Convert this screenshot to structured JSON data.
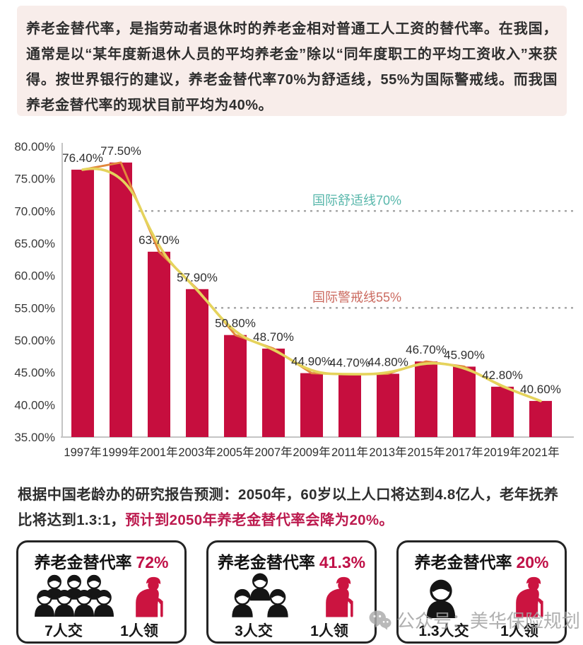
{
  "intro": {
    "text": "养老金替代率，是指劳动者退休时的养老金相对普通工人工资的替代率。在我国，通常是以“某年度新退休人员的平均养老金”除以“同年度职工的平均工资收入”来获得。按世界银行的建议，养老金替代率70%为舒适线，55%为国际警戒线。而我国养老金替代率的现状目前平均为40%。"
  },
  "chart_data": {
    "type": "bar",
    "title": "",
    "categories": [
      "1997年",
      "1999年",
      "2001年",
      "2003年",
      "2005年",
      "2007年",
      "2009年",
      "2011年",
      "2013年",
      "2015年",
      "2017年",
      "2019年",
      "2021年"
    ],
    "values": [
      76.4,
      77.5,
      63.7,
      57.9,
      50.8,
      48.7,
      44.9,
      44.7,
      44.8,
      46.7,
      45.9,
      42.8,
      40.6
    ],
    "value_labels": [
      "76.40%",
      "77.50%",
      "63.70%",
      "57.90%",
      "50.80%",
      "48.70%",
      "44.90%",
      "44.70%",
      "44.80%",
      "46.70%",
      "45.90%",
      "42.80%",
      "40.60%"
    ],
    "overlay_line": "trend line through bar tops",
    "y_axis": {
      "min": 35,
      "max": 80,
      "step": 5,
      "tick_decimals": 2,
      "tick_suffix": "%"
    },
    "reference_lines": [
      {
        "value": 70,
        "label": "国际舒适线70%",
        "color": "#58b7ab"
      },
      {
        "value": 55,
        "label": "国际警戒线55%",
        "color": "#cb6a5f"
      }
    ],
    "bar_color": "#c60e3e",
    "line_color": "#e5d35c",
    "line_shadow_color": "#e2883c",
    "dotted_line_color": "#a3a3a3",
    "axis_color": "#c4c4c4",
    "grid": "off",
    "legend": "off"
  },
  "prediction": {
    "text_normal": "根据中国老龄办的研究报告预测：2050年，60岁以上人口将达到4.8亿人，老年抚养比将达到1.3:1，",
    "text_highlight": "预计到2050年养老金替代率会降为20%。",
    "highlight_color": "#bc1a4e"
  },
  "cards": [
    {
      "title_label": "养老金替代率",
      "title_value": "72%",
      "value_color": "#c01047",
      "payers_count": 7,
      "payers_label": "7人交",
      "receiver_label": "1人领"
    },
    {
      "title_label": "养老金替代率",
      "title_value": "41.3%",
      "value_color": "#c01047",
      "payers_count": 3,
      "payers_label": "3人交",
      "receiver_label": "1人领"
    },
    {
      "title_label": "养老金替代率",
      "title_value": "20%",
      "value_color": "#c01047",
      "payers_count": 1.3,
      "payers_label": "1.3人交",
      "receiver_label": "1人领"
    }
  ],
  "watermark": {
    "text": "公众号：美华保险规划"
  }
}
